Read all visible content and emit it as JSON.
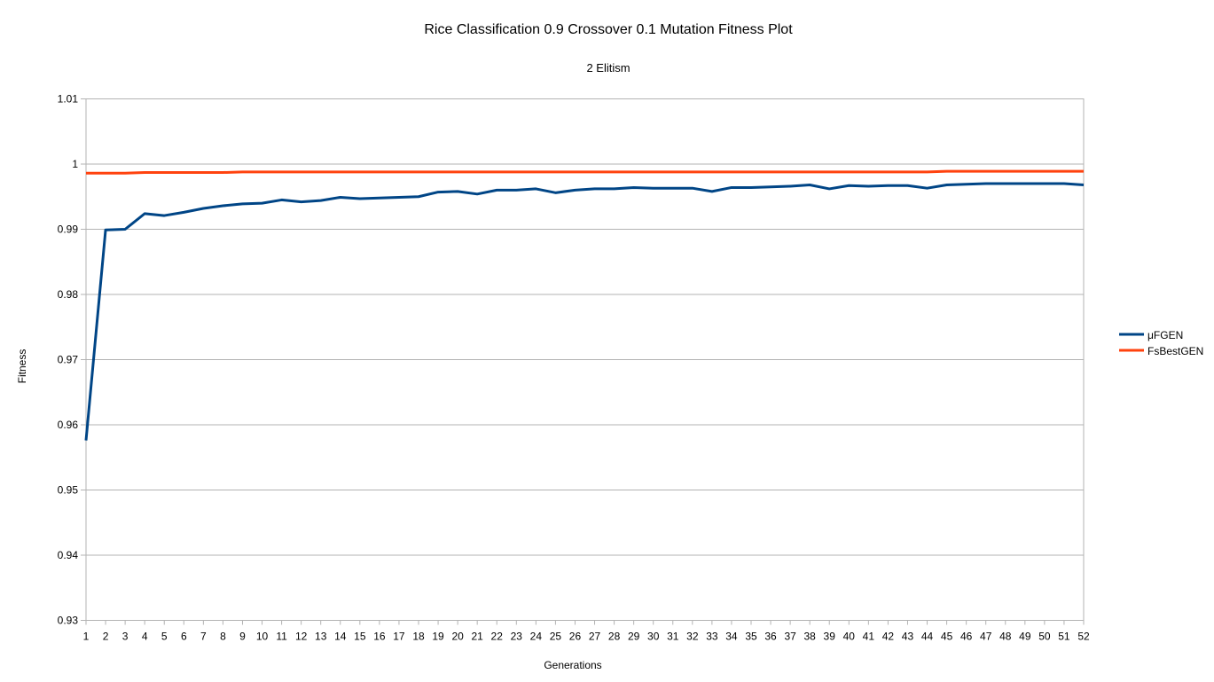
{
  "chart_data": {
    "type": "line",
    "title": "Rice Classification 0.9 Crossover 0.1 Mutation Fitness Plot",
    "subtitle": "2 Elitism",
    "xlabel": "Generations",
    "ylabel": "Fitness",
    "ylim": [
      0.93,
      1.01
    ],
    "yticks": [
      0.93,
      0.94,
      0.95,
      0.96,
      0.97,
      0.98,
      0.99,
      1,
      1.01
    ],
    "ytick_labels": [
      "0.93",
      "0.94",
      "0.95",
      "0.96",
      "0.97",
      "0.98",
      "0.99",
      "1",
      "1.01"
    ],
    "grid": true,
    "legend_position": "right",
    "categories": [
      1,
      2,
      3,
      4,
      5,
      6,
      7,
      8,
      9,
      10,
      11,
      12,
      13,
      14,
      15,
      16,
      17,
      18,
      19,
      20,
      21,
      22,
      23,
      24,
      25,
      26,
      27,
      28,
      29,
      30,
      31,
      32,
      33,
      34,
      35,
      36,
      37,
      38,
      39,
      40,
      41,
      42,
      43,
      44,
      45,
      46,
      47,
      48,
      49,
      50,
      51,
      52
    ],
    "series": [
      {
        "name": "μFGEN",
        "color": "#004586",
        "values": [
          0.9576,
          0.9899,
          0.99,
          0.9924,
          0.9921,
          0.9926,
          0.9932,
          0.9936,
          0.9939,
          0.994,
          0.9945,
          0.9942,
          0.9944,
          0.9949,
          0.9947,
          0.9948,
          0.9949,
          0.995,
          0.9957,
          0.9958,
          0.9954,
          0.996,
          0.996,
          0.9962,
          0.9956,
          0.996,
          0.9962,
          0.9962,
          0.9964,
          0.9963,
          0.9963,
          0.9963,
          0.9958,
          0.9964,
          0.9964,
          0.9965,
          0.9966,
          0.9968,
          0.9962,
          0.9967,
          0.9966,
          0.9967,
          0.9967,
          0.9963,
          0.9968,
          0.9969,
          0.997,
          0.997,
          0.997,
          0.997,
          0.997,
          0.9968
        ]
      },
      {
        "name": "FsBestGEN",
        "color": "#ff420e",
        "values": [
          0.9986,
          0.9986,
          0.9986,
          0.9987,
          0.9987,
          0.9987,
          0.9987,
          0.9987,
          0.9988,
          0.9988,
          0.9988,
          0.9988,
          0.9988,
          0.9988,
          0.9988,
          0.9988,
          0.9988,
          0.9988,
          0.9988,
          0.9988,
          0.9988,
          0.9988,
          0.9988,
          0.9988,
          0.9988,
          0.9988,
          0.9988,
          0.9988,
          0.9988,
          0.9988,
          0.9988,
          0.9988,
          0.9988,
          0.9988,
          0.9988,
          0.9988,
          0.9988,
          0.9988,
          0.9988,
          0.9988,
          0.9988,
          0.9988,
          0.9988,
          0.9988,
          0.9989,
          0.9989,
          0.9989,
          0.9989,
          0.9989,
          0.9989,
          0.9989,
          0.9989
        ]
      }
    ]
  }
}
